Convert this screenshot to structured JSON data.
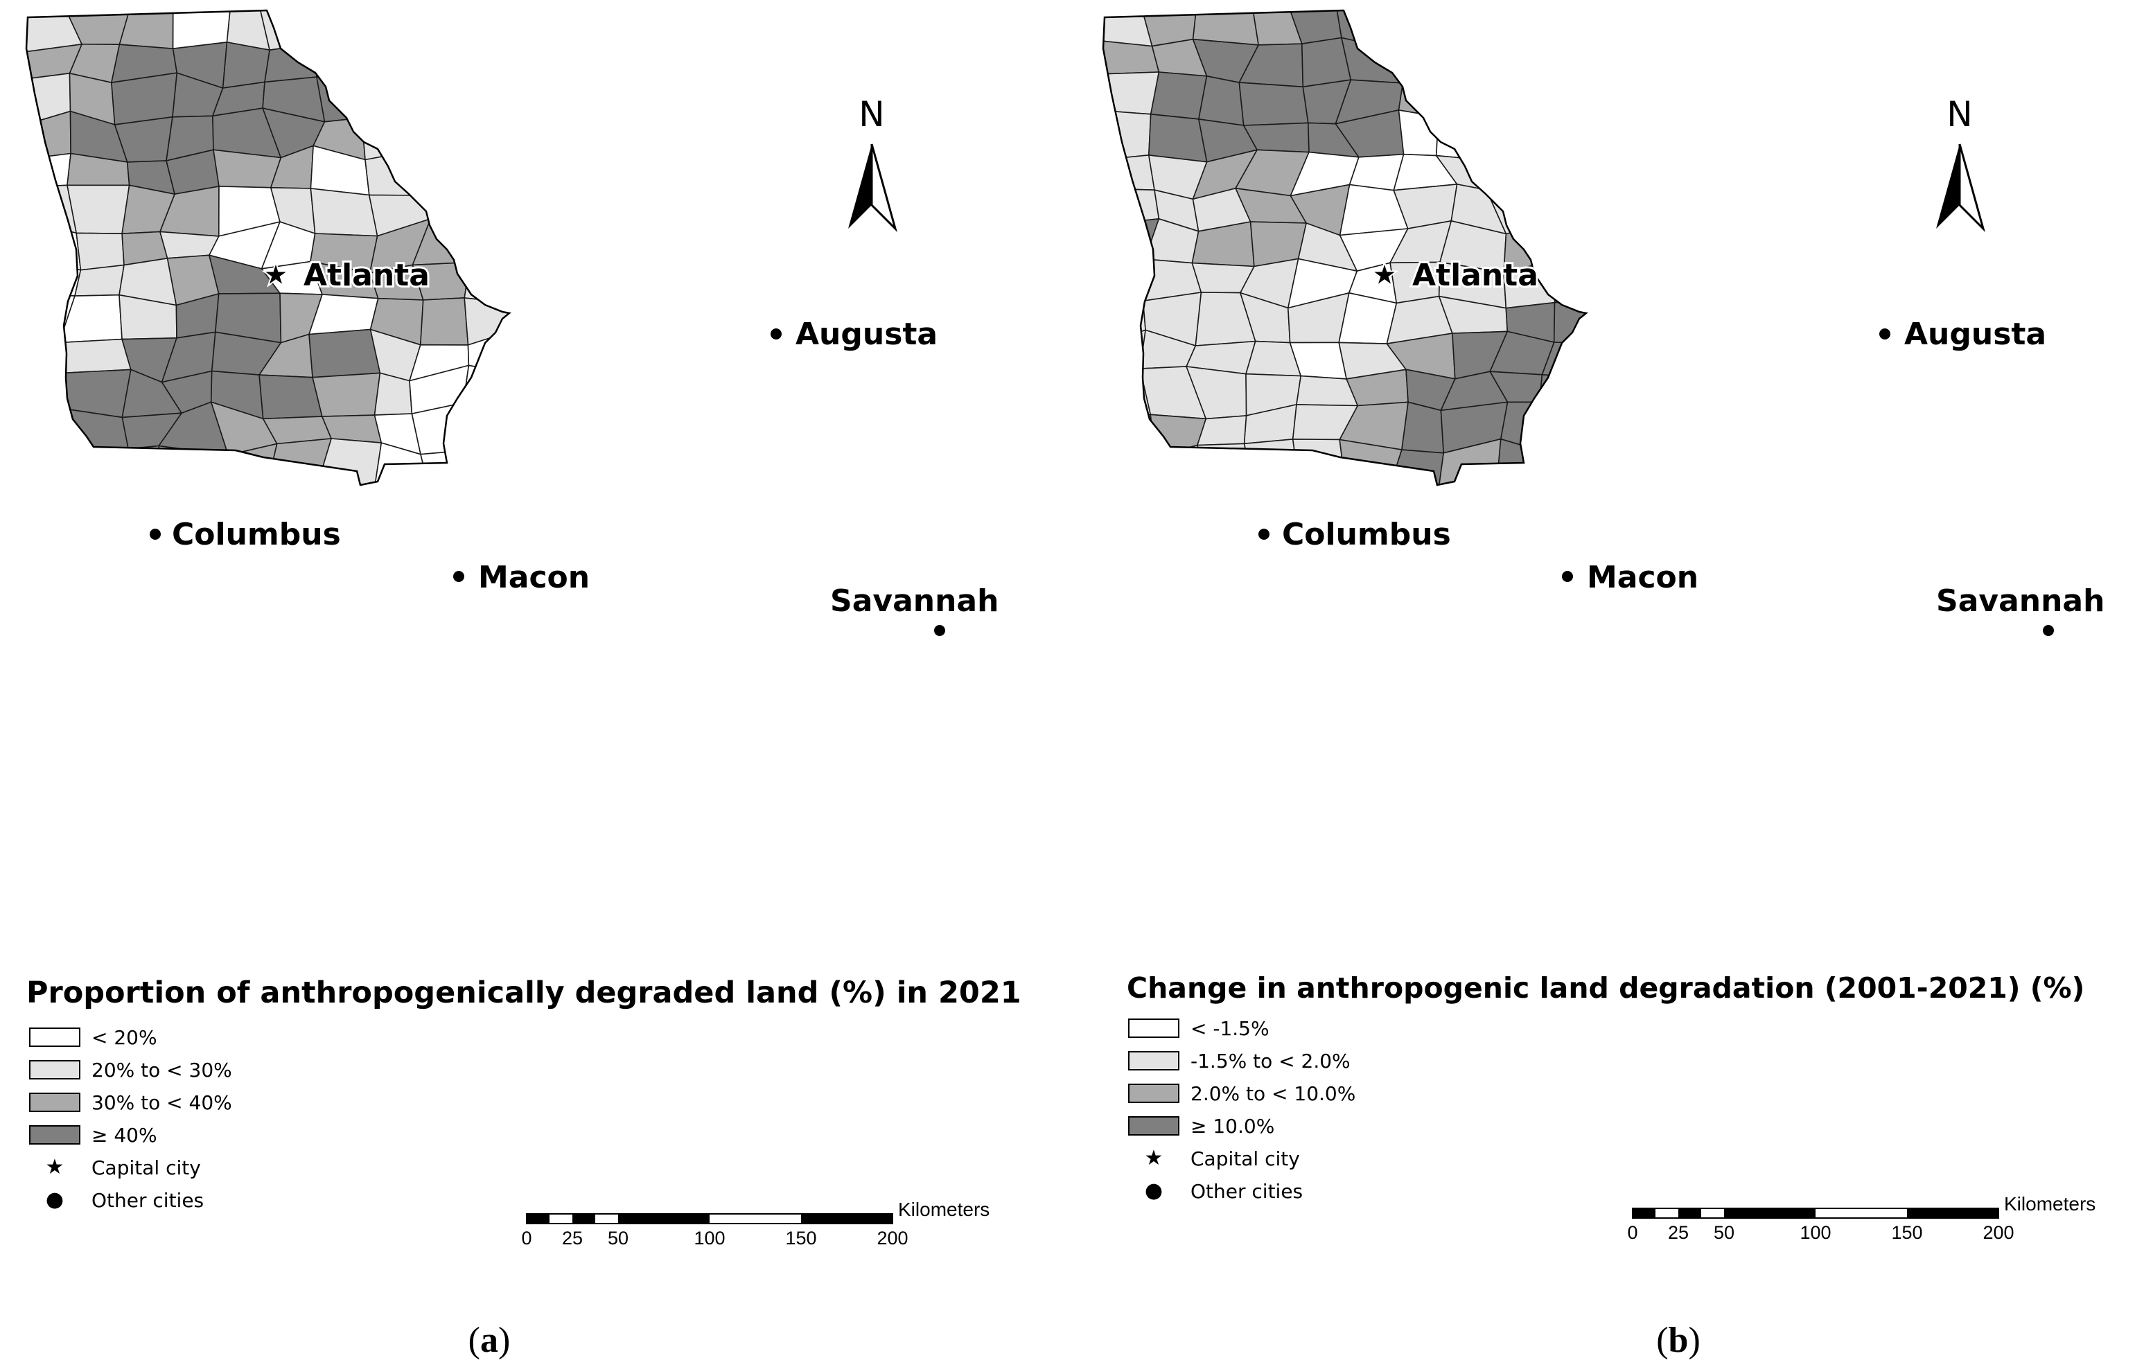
{
  "colors": {
    "class1": "#ffffff",
    "class2": "#e3e3e3",
    "class3": "#aaaaaa",
    "class4": "#7f7f7f",
    "outline": "#1a1a1a"
  },
  "maps": [
    {
      "id": "a",
      "north_label": "N",
      "legend_title": "Proportion of anthropogenically degraded land (%) in 2021",
      "classes": [
        "< 20%",
        "20% to < 30%",
        "30% to < 40%",
        "≥ 40%"
      ],
      "capital_label": "Capital city",
      "cities_label": "Other cities",
      "scale_ticks": [
        "0",
        "25",
        "50",
        "100",
        "150",
        "200"
      ],
      "scale_unit": "Kilometers",
      "panel_label": "a"
    },
    {
      "id": "b",
      "north_label": "N",
      "legend_title": "Change in anthropogenic land degradation (2001-2021) (%)",
      "classes": [
        "< -1.5%",
        "-1.5% to < 2.0%",
        "2.0% to < 10.0%",
        "≥ 10.0%"
      ],
      "capital_label": "Capital city",
      "cities_label": "Other cities",
      "scale_ticks": [
        "0",
        "25",
        "50",
        "100",
        "150",
        "200"
      ],
      "scale_unit": "Kilometers",
      "panel_label": "b"
    }
  ],
  "cities": [
    {
      "name": "Atlanta",
      "type": "capital"
    },
    {
      "name": "Augusta",
      "type": "city"
    },
    {
      "name": "Columbus",
      "type": "city"
    },
    {
      "name": "Macon",
      "type": "city"
    },
    {
      "name": "Savannah",
      "type": "city"
    }
  ],
  "legend_symbols": {
    "capital": "star-icon",
    "city": "dot-icon"
  }
}
